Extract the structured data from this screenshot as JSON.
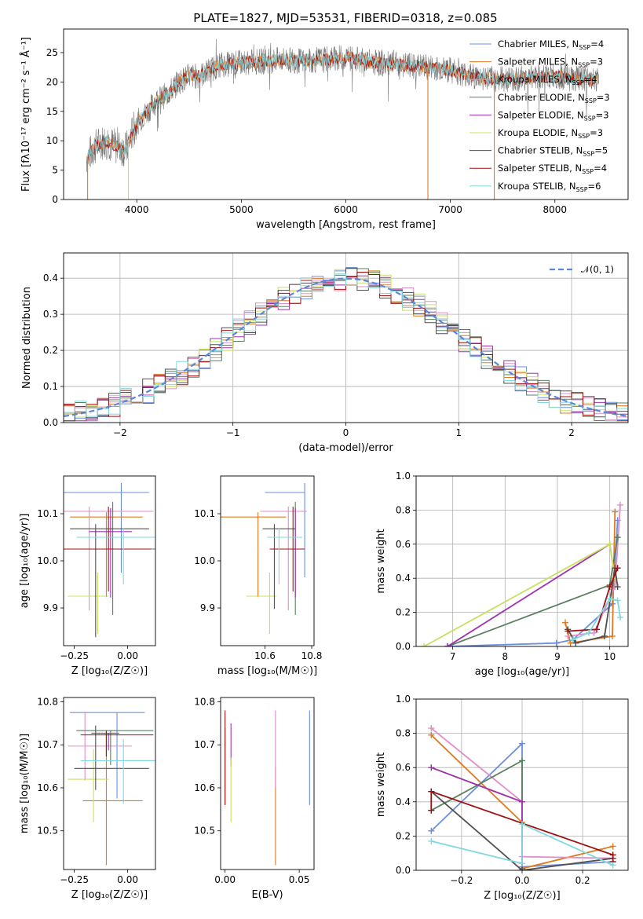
{
  "colors": {
    "cm": "#6b8fde",
    "sm": "#e07a20",
    "km": "#e08dc8",
    "ce": "#5a8060",
    "se": "#a030b0",
    "ke": "#c8e060",
    "cs": "#505050",
    "ss": "#a01010",
    "ks": "#80d8e0",
    "normal": "#5b88d6",
    "grid": "#b0b0b0"
  },
  "chart_data": [
    {
      "id": "spectrum",
      "type": "line",
      "title": "PLATE=1827, MJD=53531, FIBERID=0318, z=0.085",
      "xlabel": "wavelength [Angstrom, rest frame]",
      "ylabel": "Flux [fλ10⁻¹⁷ erg cm⁻² s⁻¹ Å⁻¹]",
      "xlim": [
        3300,
        8700
      ],
      "ylim": [
        0,
        29
      ],
      "xticks": [
        "4000",
        "5000",
        "6000",
        "7000",
        "8000"
      ],
      "yticks": [
        "0",
        "5",
        "10",
        "15",
        "20",
        "25"
      ],
      "legend": "upper-right",
      "grid": false,
      "legend_entries": [
        {
          "prefix": "Chabrier MILES, N",
          "sub": "SSP",
          "suffix": "=4",
          "color_key": "cm"
        },
        {
          "prefix": "Salpeter MILES, N",
          "sub": "SSP",
          "suffix": "=3",
          "color_key": "sm"
        },
        {
          "prefix": "Kroupa MILES, N",
          "sub": "SSP",
          "suffix": "=4",
          "color_key": "km"
        },
        {
          "prefix": "Chabrier ELODIE, N",
          "sub": "SSP",
          "suffix": "=3",
          "color_key": "ce"
        },
        {
          "prefix": "Salpeter ELODIE, N",
          "sub": "SSP",
          "suffix": "=3",
          "color_key": "se"
        },
        {
          "prefix": "Kroupa ELODIE, N",
          "sub": "SSP",
          "suffix": "=3",
          "color_key": "ke"
        },
        {
          "prefix": "Chabrier STELIB, N",
          "sub": "SSP",
          "suffix": "=5",
          "color_key": "cs"
        },
        {
          "prefix": "Salpeter STELIB, N",
          "sub": "SSP",
          "suffix": "=4",
          "color_key": "ss"
        },
        {
          "prefix": "Kroupa STELIB, N",
          "sub": "SSP",
          "suffix": "=6",
          "color_key": "ks"
        }
      ],
      "continuum": [
        [
          3520,
          7
        ],
        [
          3600,
          9
        ],
        [
          3700,
          10
        ],
        [
          3800,
          9
        ],
        [
          3900,
          8.5
        ],
        [
          3950,
          11
        ],
        [
          4000,
          13
        ],
        [
          4100,
          15
        ],
        [
          4200,
          17
        ],
        [
          4300,
          18
        ],
        [
          4400,
          20
        ],
        [
          4500,
          21
        ],
        [
          4600,
          21
        ],
        [
          4700,
          22
        ],
        [
          4800,
          23
        ],
        [
          4900,
          23
        ],
        [
          5000,
          23.3
        ],
        [
          5200,
          23.5
        ],
        [
          5400,
          23.8
        ],
        [
          5600,
          23.5
        ],
        [
          5800,
          23.8
        ],
        [
          6000,
          24.2
        ],
        [
          6200,
          23.5
        ],
        [
          6400,
          23
        ],
        [
          6600,
          22.8
        ],
        [
          6800,
          22.5
        ],
        [
          7000,
          22
        ],
        [
          7200,
          21
        ],
        [
          7400,
          20.5
        ],
        [
          7600,
          20.5
        ],
        [
          7800,
          20.8
        ],
        [
          8000,
          21
        ],
        [
          8200,
          20.5
        ],
        [
          8400,
          20.5
        ]
      ]
    },
    {
      "id": "residuals",
      "type": "histogram",
      "xlabel": "(data-model)/error",
      "ylabel": "Normed distribution",
      "xlim": [
        -2.5,
        2.5
      ],
      "ylim": [
        0,
        0.47
      ],
      "xticks": [
        "−2",
        "−1",
        "0",
        "1",
        "2"
      ],
      "yticks": [
        "0.0",
        "0.1",
        "0.2",
        "0.3",
        "0.4"
      ],
      "legend": "upper-right",
      "legend_label": "𝒩(0, 1)",
      "grid": true,
      "bins": 50
    },
    {
      "id": "age-vs-Z",
      "type": "errorbar",
      "xlabel": "Z [log₁₀(Z/Z☉)]",
      "ylabel": "age  [log₁₀(age/yr)]",
      "xlim": [
        -0.3,
        0.13
      ],
      "ylim": [
        9.82,
        10.18
      ],
      "xticks": [
        "−0.25",
        "0.00"
      ],
      "yticks": [
        "9.9",
        "10.0",
        "10.1"
      ],
      "points": [
        {
          "c": "cm",
          "x": -0.03,
          "y": 10.145,
          "xe": [
            0.27,
            0.13
          ],
          "ye": [
            0.17,
            0.02
          ]
        },
        {
          "c": "sm",
          "x": -0.1,
          "y": 10.093,
          "xe": [
            0.17,
            0.17
          ],
          "ye": [
            0.17,
            0.01
          ]
        },
        {
          "c": "km",
          "x": -0.18,
          "y": 10.105,
          "xe": [
            0.12,
            0.3
          ],
          "ye": [
            0.21,
            0.01
          ]
        },
        {
          "c": "ce",
          "x": -0.07,
          "y": 10.025,
          "xe": [
            0.2,
            0.2
          ],
          "ye": [
            0.14,
            0.1
          ]
        },
        {
          "c": "se",
          "x": -0.08,
          "y": 10.062,
          "xe": [
            0.1,
            0.1
          ],
          "ye": [
            0.14,
            0.05
          ]
        },
        {
          "c": "ke",
          "x": -0.14,
          "y": 9.925,
          "xe": [
            0.14,
            0.05
          ],
          "ye": [
            0.08,
            0.05
          ]
        },
        {
          "c": "cs",
          "x": -0.15,
          "y": 10.068,
          "xe": [
            0.12,
            0.25
          ],
          "ye": [
            0.23,
            0.01
          ]
        },
        {
          "c": "ss",
          "x": -0.09,
          "y": 10.025,
          "xe": [
            0.21,
            0.2
          ],
          "ye": [
            0.09,
            0.09
          ]
        },
        {
          "c": "ks",
          "x": -0.02,
          "y": 10.05,
          "xe": [
            0.22,
            0.2
          ],
          "ye": [
            0.1,
            0.02
          ]
        }
      ]
    },
    {
      "id": "age-vs-mass",
      "type": "errorbar",
      "xlabel": "mass [log₁₀(M/M☉)]",
      "xlim": [
        10.41,
        10.81
      ],
      "ylim": [
        9.82,
        10.18
      ],
      "xticks": [
        "10.6",
        "10.8"
      ],
      "yticks": [
        "9.9",
        "10.0",
        "10.1"
      ],
      "points": [
        {
          "c": "cm",
          "x": 10.77,
          "y": 10.145,
          "xe": [
            0.17,
            0.0
          ],
          "ye": [
            0.18,
            0.02
          ]
        },
        {
          "c": "sm",
          "x": 10.57,
          "y": 10.093,
          "xe": [
            0.16,
            0.12
          ],
          "ye": [
            0.17,
            0.01
          ]
        },
        {
          "c": "km",
          "x": 10.7,
          "y": 10.105,
          "xe": [
            0.12,
            0.08
          ],
          "ye": [
            0.21,
            0.01
          ]
        },
        {
          "c": "ce",
          "x": 10.73,
          "y": 10.025,
          "xe": [
            0.1,
            0.03
          ],
          "ye": [
            0.14,
            0.1
          ]
        },
        {
          "c": "se",
          "x": 10.73,
          "y": 10.062,
          "xe": [
            0.0,
            0.0
          ],
          "ye": [
            0.14,
            0.05
          ]
        },
        {
          "c": "ke",
          "x": 10.62,
          "y": 9.925,
          "xe": [
            0.1,
            0.03
          ],
          "ye": [
            0.08,
            0.05
          ]
        },
        {
          "c": "cs",
          "x": 10.64,
          "y": 10.068,
          "xe": [
            0.05,
            0.09
          ],
          "ye": [
            0.17,
            0.01
          ]
        },
        {
          "c": "ss",
          "x": 10.72,
          "y": 10.025,
          "xe": [
            0.1,
            0.05
          ],
          "ye": [
            0.09,
            0.09
          ]
        },
        {
          "c": "ks",
          "x": 10.66,
          "y": 10.05,
          "xe": [
            0.05,
            0.1
          ],
          "ye": [
            0.1,
            0.02
          ]
        }
      ]
    },
    {
      "id": "mass-weight-vs-age",
      "type": "line",
      "xlabel": "age  [log₁₀(age/yr)]",
      "ylabel": "mass weight",
      "xlim": [
        6.3,
        10.35
      ],
      "ylim": [
        0,
        1.0
      ],
      "xticks": [
        "7",
        "8",
        "9",
        "10"
      ],
      "yticks": [
        "0.0",
        "0.2",
        "0.4",
        "0.6",
        "0.8",
        "1.0"
      ],
      "grid": true,
      "series": [
        {
          "c": "cm",
          "x": [
            6.9,
            8.98,
            9.3,
            10.05,
            10.15
          ],
          "y": [
            0.0,
            0.02,
            0.04,
            0.25,
            0.74
          ]
        },
        {
          "c": "sm",
          "x": [
            9.15,
            9.25,
            10.05,
            10.1
          ],
          "y": [
            0.14,
            0.02,
            0.06,
            0.79
          ]
        },
        {
          "c": "km",
          "x": [
            9.2,
            9.7,
            10.1,
            10.2
          ],
          "y": [
            0.06,
            0.08,
            0.35,
            0.83
          ]
        },
        {
          "c": "ce",
          "x": [
            6.9,
            10.0,
            10.15
          ],
          "y": [
            0.0,
            0.36,
            0.64
          ]
        },
        {
          "c": "se",
          "x": [
            6.9,
            10.0,
            10.1
          ],
          "y": [
            0.0,
            0.6,
            0.4
          ]
        },
        {
          "c": "ke",
          "x": [
            6.45,
            10.0,
            10.1
          ],
          "y": [
            0.0,
            0.6,
            0.4
          ]
        },
        {
          "c": "cs",
          "x": [
            9.2,
            9.35,
            9.9,
            10.1,
            10.15
          ],
          "y": [
            0.1,
            0.02,
            0.06,
            0.46,
            0.35
          ]
        },
        {
          "c": "ss",
          "x": [
            9.2,
            9.75,
            10.0,
            10.15
          ],
          "y": [
            0.09,
            0.1,
            0.35,
            0.46
          ]
        },
        {
          "c": "ks",
          "x": [
            9.3,
            9.6,
            10.0,
            10.15,
            10.2
          ],
          "y": [
            0.04,
            0.08,
            0.28,
            0.27,
            0.17
          ]
        }
      ]
    },
    {
      "id": "mass-vs-Z",
      "type": "errorbar",
      "xlabel": "Z [log₁₀(Z/Z☉)]",
      "ylabel": "mass [log₁₀(M/M☉)]",
      "xlim": [
        -0.3,
        0.13
      ],
      "ylim": [
        10.41,
        10.81
      ],
      "xticks": [
        "−0.25",
        "0.00"
      ],
      "yticks": [
        "10.5",
        "10.6",
        "10.7",
        "10.8"
      ],
      "points": [
        {
          "c": "cm",
          "x": -0.05,
          "y": 10.775,
          "xe": [
            0.22,
            0.13
          ],
          "ye": [
            0.2,
            0.0
          ]
        },
        {
          "c": "sm",
          "x": -0.1,
          "y": 10.57,
          "xe": [
            0.11,
            0.17
          ],
          "ye": [
            0.15,
            0.16
          ]
        },
        {
          "c": "km",
          "x": -0.2,
          "y": 10.697,
          "xe": [
            0.08,
            0.22
          ],
          "ye": [
            0.08,
            0.08
          ]
        },
        {
          "c": "ce",
          "x": -0.08,
          "y": 10.733,
          "xe": [
            0.16,
            0.2
          ],
          "ye": [
            0.08,
            0.0
          ]
        },
        {
          "c": "se",
          "x": -0.09,
          "y": 10.727,
          "xe": [
            0.08,
            0.05
          ],
          "ye": [
            0.04,
            0.0
          ]
        },
        {
          "c": "ke",
          "x": -0.16,
          "y": 10.62,
          "xe": [
            0.12,
            0.07
          ],
          "ye": [
            0.1,
            0.07
          ]
        },
        {
          "c": "cs",
          "x": -0.15,
          "y": 10.645,
          "xe": [
            0.1,
            0.25
          ],
          "ye": [
            0.05,
            0.1
          ]
        },
        {
          "c": "ss",
          "x": -0.1,
          "y": 10.723,
          "xe": [
            0.12,
            0.22
          ],
          "ye": [
            0.05,
            0.01
          ]
        },
        {
          "c": "ks",
          "x": -0.02,
          "y": 10.663,
          "xe": [
            0.2,
            0.15
          ],
          "ye": [
            0.1,
            0.05
          ]
        }
      ]
    },
    {
      "id": "mass-vs-EBV",
      "type": "errorbar",
      "xlabel": "E(B-V)",
      "xlim": [
        -0.003,
        0.06
      ],
      "ylim": [
        10.41,
        10.81
      ],
      "xticks": [
        "0.00",
        "0.05"
      ],
      "yticks": [
        "10.5",
        "10.6",
        "10.7",
        "10.8"
      ],
      "points": [
        {
          "c": "cm",
          "x": 0.057,
          "y": 10.75,
          "xe": [
            0,
            0
          ],
          "ye": [
            0.19,
            0.03
          ]
        },
        {
          "c": "sm",
          "x": 0.034,
          "y": 10.57,
          "xe": [
            0,
            0
          ],
          "ye": [
            0.15,
            0.08
          ]
        },
        {
          "c": "km",
          "x": 0.034,
          "y": 10.7,
          "xe": [
            0,
            0
          ],
          "ye": [
            0.1,
            0.08
          ]
        },
        {
          "c": "ce",
          "x": 0.0,
          "y": 10.68,
          "xe": [
            0,
            0
          ],
          "ye": [
            0.12,
            0.06
          ]
        },
        {
          "c": "se",
          "x": 0.004,
          "y": 10.7,
          "xe": [
            0,
            0
          ],
          "ye": [
            0.05,
            0.05
          ]
        },
        {
          "c": "ke",
          "x": 0.004,
          "y": 10.62,
          "xe": [
            0,
            0
          ],
          "ye": [
            0.1,
            0.05
          ]
        },
        {
          "c": "ss",
          "x": 0.0,
          "y": 10.72,
          "xe": [
            0,
            0
          ],
          "ye": [
            0.16,
            0.06
          ]
        }
      ]
    },
    {
      "id": "mass-weight-vs-Z",
      "type": "line",
      "xlabel": "Z [log₁₀(Z/Z☉)]",
      "ylabel": "mass weight",
      "xlim": [
        -0.35,
        0.35
      ],
      "ylim": [
        0,
        1.0
      ],
      "xticks": [
        "−0.2",
        "0.0",
        "0.2"
      ],
      "yticks": [
        "0.0",
        "0.2",
        "0.4",
        "0.6",
        "0.8",
        "1.0"
      ],
      "grid": true,
      "series": [
        {
          "c": "cm",
          "x": [
            -0.3,
            0.0,
            0.0,
            0.3
          ],
          "y": [
            0.23,
            0.74,
            0.02,
            0.05
          ]
        },
        {
          "c": "sm",
          "x": [
            -0.3,
            0.0,
            0.0,
            0.3
          ],
          "y": [
            0.79,
            0.28,
            0.01,
            0.14
          ]
        },
        {
          "c": "km",
          "x": [
            -0.3,
            0.0,
            0.0,
            0.3
          ],
          "y": [
            0.83,
            0.4,
            0.08,
            0.07
          ]
        },
        {
          "c": "ce",
          "x": [
            -0.3,
            0.0,
            0.0
          ],
          "y": [
            0.35,
            0.64,
            0.01
          ]
        },
        {
          "c": "ke",
          "x": [
            -0.3,
            0.0,
            0.0
          ],
          "y": [
            0.6,
            0.4,
            0.0
          ]
        },
        {
          "c": "se",
          "x": [
            -0.3,
            0.0,
            0.0
          ],
          "y": [
            0.6,
            0.4,
            0.0
          ]
        },
        {
          "c": "cs",
          "x": [
            -0.3,
            0.0,
            0.3
          ],
          "y": [
            0.46,
            0.0,
            0.07
          ]
        },
        {
          "c": "ss",
          "x": [
            -0.3,
            -0.3,
            0.3,
            0.3
          ],
          "y": [
            0.35,
            0.46,
            0.09,
            0.05
          ]
        },
        {
          "c": "ks",
          "x": [
            -0.3,
            0.0,
            0.0,
            0.3
          ],
          "y": [
            0.17,
            0.04,
            0.27,
            0.03
          ]
        }
      ]
    }
  ]
}
